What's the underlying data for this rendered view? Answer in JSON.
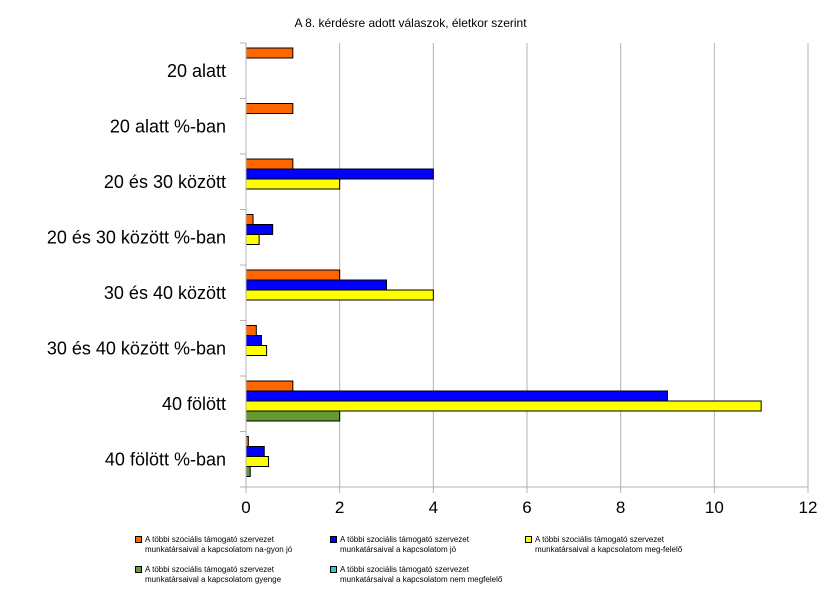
{
  "chart_data": {
    "type": "bar",
    "orientation": "horizontal",
    "title": "A 8. kérdésre adott válaszok, életkor szerint",
    "categories": [
      "20 alatt",
      "20 alatt %-ban",
      "20 és 30 között",
      "20 és 30 között %-ban",
      "30 és 40 között",
      "30 és 40 között %-ban",
      "40 fölött",
      "40 fölött %-ban"
    ],
    "series": [
      {
        "name": "A többi szociális támogató szervezet munkatársaival a kapcsolatom na-gyon jó",
        "color": "#ff6600",
        "values": [
          1,
          1,
          1,
          0.15,
          2,
          0.22,
          1,
          0.05
        ]
      },
      {
        "name": "A többi szociális támogató szervezet munkatársaival a kapcsolatom jó",
        "color": "#0000ff",
        "values": [
          0,
          0,
          4,
          0.57,
          3,
          0.33,
          9,
          0.39
        ]
      },
      {
        "name": "A többi szociális támogató szervezet munkatársaival a kapcsolatom meg-felelő",
        "color": "#ffff00",
        "values": [
          0,
          0,
          2,
          0.28,
          4,
          0.44,
          11,
          0.48
        ]
      },
      {
        "name": "A többi szociális támogató szervezet munkatársaival a kapcsolatom gyenge",
        "color": "#669933",
        "values": [
          0,
          0,
          0,
          0,
          0,
          0,
          2,
          0.09
        ]
      },
      {
        "name": "A többi szociális támogató szervezet munkatársaival a kapcsolatom nem megfelelő",
        "color": "#33cccc",
        "values": [
          0,
          0,
          0,
          0,
          0,
          0,
          0,
          0
        ]
      }
    ],
    "xlim": [
      0,
      12
    ],
    "xticks": [
      0,
      2,
      4,
      6,
      8,
      10,
      12
    ],
    "grid": true,
    "legend_position": "bottom"
  }
}
